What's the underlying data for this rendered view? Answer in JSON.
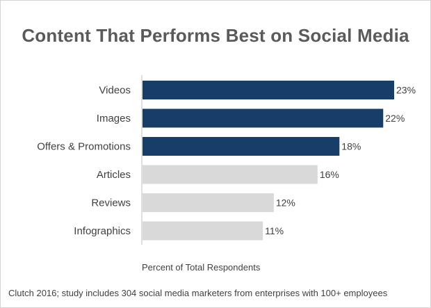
{
  "chart_data": {
    "type": "bar",
    "orientation": "horizontal",
    "title": "Content That Performs Best on Social Media",
    "xlabel": "Percent of Total Respondents",
    "ylabel": "",
    "source": "Clutch 2016; study includes 304 social media marketers from enterprises with 100+ employees",
    "categories": [
      "Videos",
      "Images",
      "Offers & Promotions",
      "Articles",
      "Reviews",
      "Infographics"
    ],
    "values": [
      23,
      22,
      18,
      16,
      12,
      11
    ],
    "value_labels": [
      "23%",
      "22%",
      "18%",
      "16%",
      "12%",
      "11%"
    ],
    "highlighted": [
      true,
      true,
      true,
      false,
      false,
      false
    ],
    "xlim": [
      0,
      23
    ],
    "grid": false,
    "colors": {
      "highlight": "#173e69",
      "muted": "#d9d9d9",
      "axis": "#bfbfbf"
    }
  }
}
